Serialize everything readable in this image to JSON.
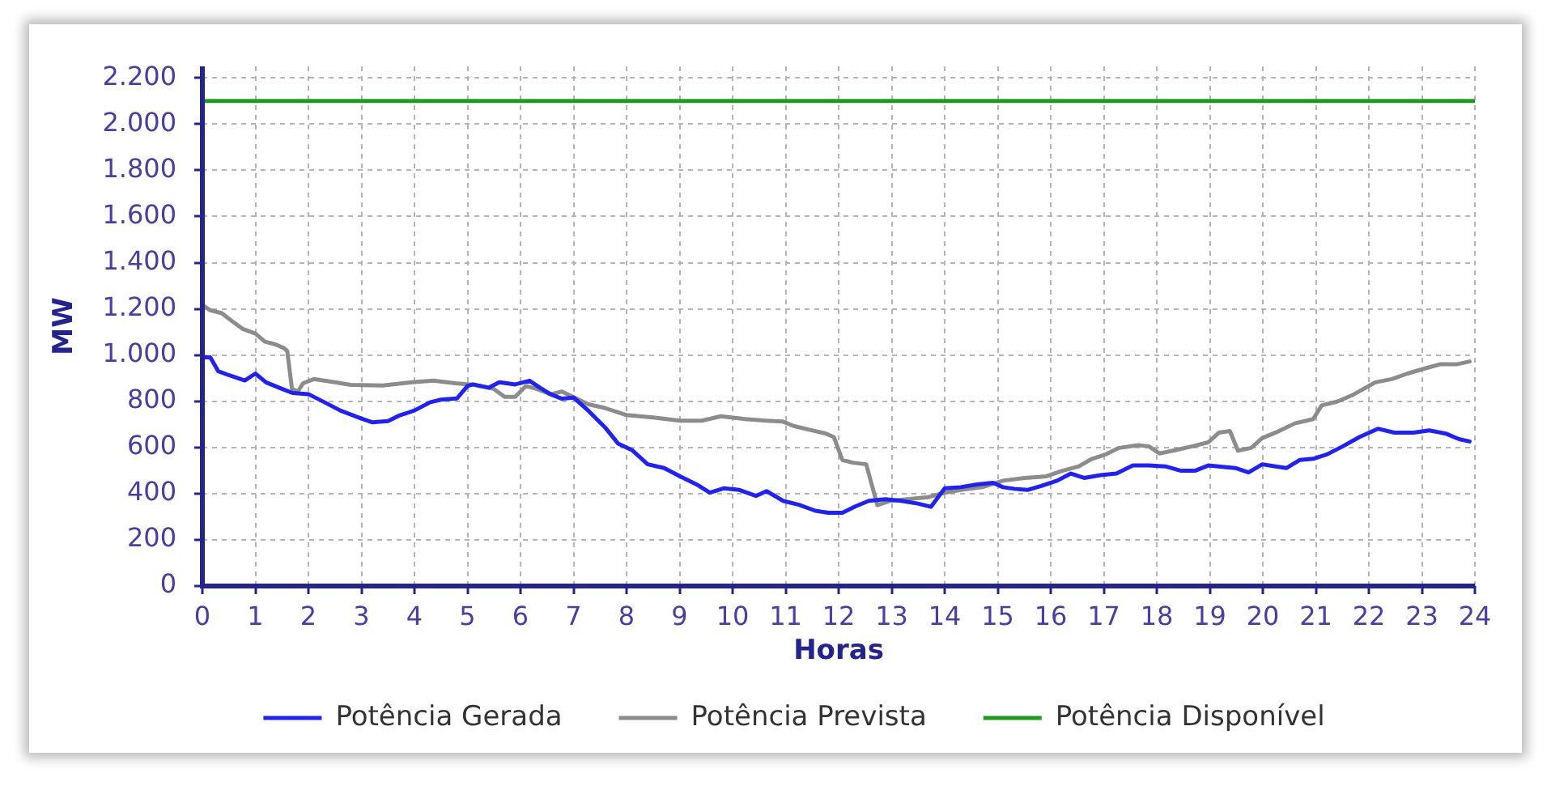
{
  "chart_data": {
    "type": "line",
    "xlabel": "Horas",
    "ylabel": "MW",
    "xlim": [
      0,
      24
    ],
    "xticks": [
      0,
      1,
      2,
      3,
      4,
      5,
      6,
      7,
      8,
      9,
      10,
      11,
      12,
      13,
      14,
      15,
      16,
      17,
      18,
      19,
      20,
      21,
      22,
      23,
      24
    ],
    "ylim": [
      0,
      2250
    ],
    "yticks": [
      0,
      200,
      400,
      600,
      800,
      {
        "value": 1000,
        "label": "1.000"
      },
      {
        "value": 1200,
        "label": "1.200"
      },
      {
        "value": 1400,
        "label": "1.400"
      },
      {
        "value": 1600,
        "label": "1.600"
      },
      {
        "value": 1800,
        "label": "1.800"
      },
      {
        "value": 2000,
        "label": "2.000"
      },
      {
        "value": 2200,
        "label": "2.200"
      }
    ],
    "grid": true,
    "legend": "bottom",
    "marker": "none",
    "line_style": "solid",
    "series": [
      {
        "name": "Potência Gerada",
        "color": "#2222ee",
        "x": [
          0,
          0.15,
          0.3,
          0.5,
          0.8,
          1.0,
          1.2,
          1.5,
          1.7,
          2.0,
          2.3,
          2.6,
          3.0,
          3.2,
          3.5,
          3.7,
          4.0,
          4.3,
          4.5,
          4.8,
          5.0,
          5.1,
          5.4,
          5.6,
          5.9,
          6.17,
          6.37,
          6.57,
          6.78,
          7.0,
          7.28,
          7.59,
          7.84,
          8.1,
          8.4,
          8.71,
          9.01,
          9.32,
          9.57,
          9.83,
          10.13,
          10.44,
          10.64,
          10.95,
          11.25,
          11.56,
          11.81,
          12.07,
          12.32,
          12.57,
          12.88,
          13.18,
          13.49,
          13.74,
          14.0,
          14.3,
          14.61,
          14.91,
          15.1,
          15.31,
          15.56,
          15.82,
          16.12,
          16.38,
          16.63,
          16.94,
          17.24,
          17.55,
          17.85,
          18.16,
          18.46,
          18.72,
          18.97,
          19.28,
          19.48,
          19.73,
          19.99,
          20.24,
          20.45,
          20.7,
          20.95,
          21.21,
          21.51,
          21.82,
          22.17,
          22.48,
          22.84,
          23.14,
          23.45,
          23.7,
          23.9
        ],
        "values": [
          990,
          990,
          930,
          913,
          890,
          920,
          882,
          854,
          836,
          831,
          796,
          760,
          725,
          709,
          714,
          737,
          760,
          796,
          807,
          812,
          866,
          873,
          859,
          882,
          873,
          889,
          858,
          830,
          811,
          816,
          759,
          688,
          617,
          589,
          527,
          511,
          475,
          440,
          404,
          423,
          416,
          390,
          411,
          369,
          352,
          326,
          317,
          317,
          345,
          369,
          376,
          369,
          357,
          343,
          423,
          428,
          440,
          447,
          428,
          421,
          416,
          433,
          456,
          487,
          468,
          480,
          487,
          522,
          522,
          518,
          499,
          499,
          522,
          515,
          511,
          492,
          527,
          518,
          511,
          546,
          551,
          570,
          605,
          645,
          681,
          664,
          664,
          674,
          660,
          636,
          626
        ]
      },
      {
        "name": "Potência Prevista",
        "color": "#8c8c8c",
        "x": [
          0,
          0.15,
          0.36,
          0.56,
          0.77,
          1.0,
          1.18,
          1.38,
          1.54,
          1.6,
          1.69,
          1.8,
          1.9,
          2.1,
          2.5,
          2.8,
          3.4,
          3.95,
          4.36,
          4.77,
          5.13,
          5.49,
          5.7,
          5.9,
          6.1,
          6.3,
          6.57,
          6.78,
          7.0,
          7.28,
          7.59,
          8.0,
          8.5,
          9.01,
          9.42,
          9.78,
          10.24,
          10.64,
          10.95,
          11.15,
          11.46,
          11.76,
          11.91,
          12.07,
          12.27,
          12.52,
          12.73,
          12.98,
          13.29,
          13.69,
          14.0,
          14.3,
          14.71,
          15.1,
          15.51,
          15.92,
          16.22,
          16.53,
          16.78,
          17.04,
          17.29,
          17.65,
          17.85,
          18.05,
          18.36,
          18.67,
          18.97,
          19.17,
          19.38,
          19.53,
          19.78,
          19.99,
          20.29,
          20.6,
          20.95,
          21.11,
          21.41,
          21.72,
          22.12,
          22.43,
          22.73,
          23.04,
          23.34,
          23.65,
          23.9
        ],
        "values": [
          1217,
          1194,
          1182,
          1147,
          1112,
          1093,
          1058,
          1046,
          1030,
          1018,
          854,
          842,
          878,
          896,
          882,
          871,
          868,
          882,
          889,
          878,
          871,
          854,
          819,
          819,
          866,
          854,
          830,
          842,
          818,
          787,
          771,
          740,
          730,
          716,
          716,
          735,
          723,
          716,
          712,
          693,
          676,
          660,
          645,
          546,
          534,
          527,
          350,
          369,
          376,
          385,
          404,
          416,
          428,
          456,
          468,
          475,
          499,
          518,
          551,
          570,
          598,
          610,
          605,
          574,
          589,
          605,
          622,
          664,
          671,
          586,
          598,
          641,
          669,
          704,
          723,
          782,
          799,
          830,
          882,
          896,
          920,
          941,
          960,
          960,
          972
        ]
      },
      {
        "name": "Potência Disponível",
        "color": "#229922",
        "x": [
          0,
          24
        ],
        "values": [
          2100,
          2100
        ]
      }
    ]
  }
}
